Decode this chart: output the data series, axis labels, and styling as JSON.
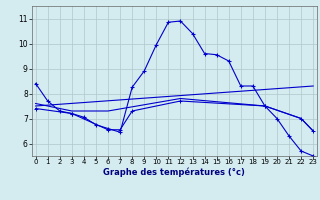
{
  "title": "Graphe des températures (°c)",
  "background_color": "#d4ecf0",
  "line_color": "#0000cc",
  "grid_color": "#b0c8cc",
  "x_ticks": [
    0,
    1,
    2,
    3,
    4,
    5,
    6,
    7,
    8,
    9,
    10,
    11,
    12,
    13,
    14,
    15,
    16,
    17,
    18,
    19,
    20,
    21,
    22,
    23
  ],
  "y_ticks": [
    6,
    7,
    8,
    9,
    10,
    11
  ],
  "xlim": [
    -0.3,
    23.3
  ],
  "ylim": [
    5.5,
    11.5
  ],
  "line1": {
    "x": [
      0,
      1,
      2,
      3,
      4,
      5,
      6,
      7,
      8,
      9,
      10,
      11,
      12,
      13,
      14,
      15,
      16,
      17,
      18,
      19,
      20,
      21,
      22,
      23
    ],
    "y": [
      8.4,
      7.7,
      7.3,
      7.2,
      7.05,
      6.75,
      6.6,
      6.45,
      8.25,
      8.9,
      9.95,
      10.85,
      10.9,
      10.4,
      9.6,
      9.55,
      9.3,
      8.3,
      8.3,
      7.5,
      7.0,
      6.3,
      5.7,
      5.5
    ]
  },
  "line2": {
    "x": [
      0,
      3,
      6,
      12,
      19,
      22,
      23
    ],
    "y": [
      7.6,
      7.3,
      7.3,
      7.8,
      7.5,
      7.0,
      6.5
    ]
  },
  "line3": {
    "x": [
      0,
      3,
      6,
      7,
      8,
      12,
      19,
      22,
      23
    ],
    "y": [
      7.4,
      7.2,
      6.55,
      6.55,
      7.3,
      7.7,
      7.5,
      7.0,
      6.5
    ]
  },
  "line4": {
    "x": [
      0,
      23
    ],
    "y": [
      7.5,
      8.3
    ]
  }
}
